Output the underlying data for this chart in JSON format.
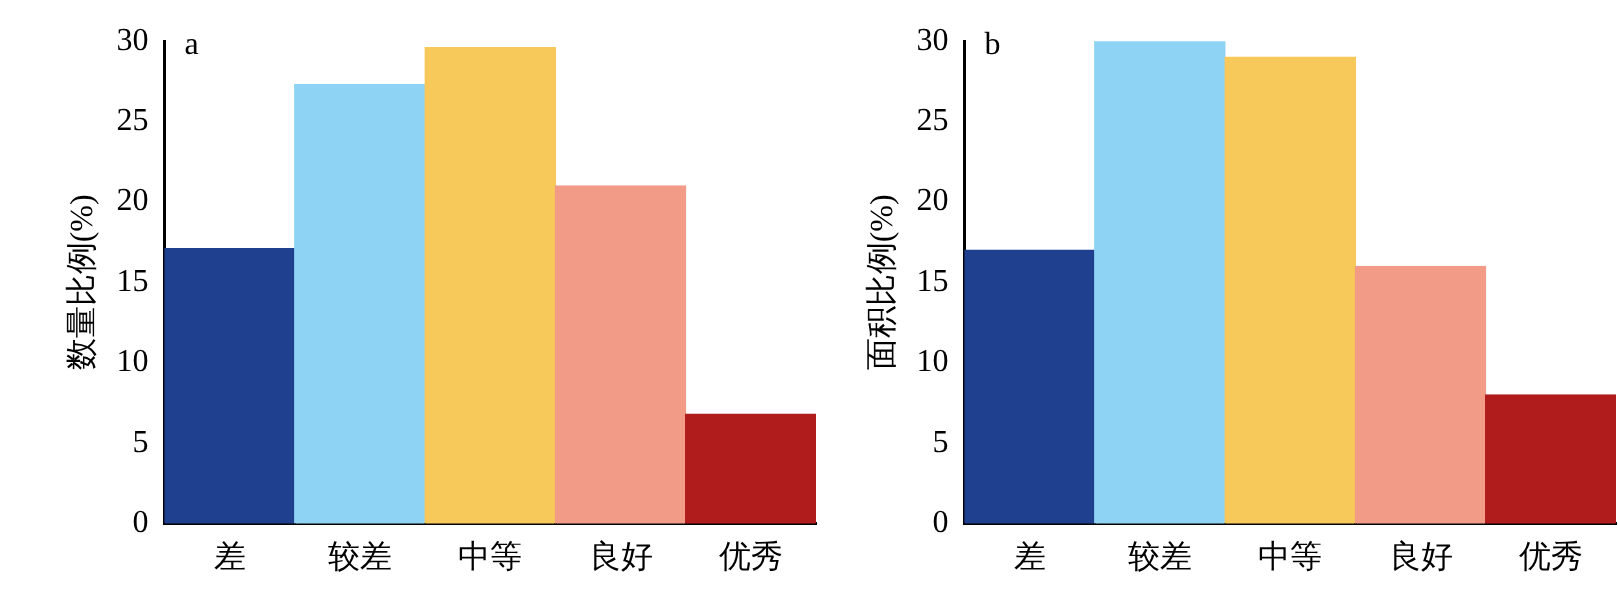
{
  "chart_data": [
    {
      "type": "bar",
      "annotations": [
        "a"
      ],
      "ylabel": "数量比例(%)",
      "categories": [
        "差",
        "较差",
        "中等",
        "良好",
        "优秀"
      ],
      "values": [
        17.1,
        27.3,
        29.6,
        21,
        6.8
      ],
      "colors": [
        "#1f3f8f",
        "#8fd3f4",
        "#f7c95a",
        "#f29c88",
        "#b01c1c"
      ],
      "ylim": [
        0,
        30
      ],
      "yticks": [
        0,
        5,
        10,
        15,
        20,
        25,
        30
      ],
      "grid": false
    },
    {
      "type": "bar",
      "annotations": [
        "b"
      ],
      "ylabel": "面积比例(%)",
      "categories": [
        "差",
        "较差",
        "中等",
        "良好",
        "优秀"
      ],
      "values": [
        17,
        30,
        29,
        16,
        8
      ],
      "colors": [
        "#1f3f8f",
        "#8fd3f4",
        "#f7c95a",
        "#f29c88",
        "#b01c1c"
      ],
      "ylim": [
        0,
        30
      ],
      "yticks": [
        0,
        5,
        10,
        15,
        20,
        25,
        30
      ],
      "grid": false
    }
  ]
}
